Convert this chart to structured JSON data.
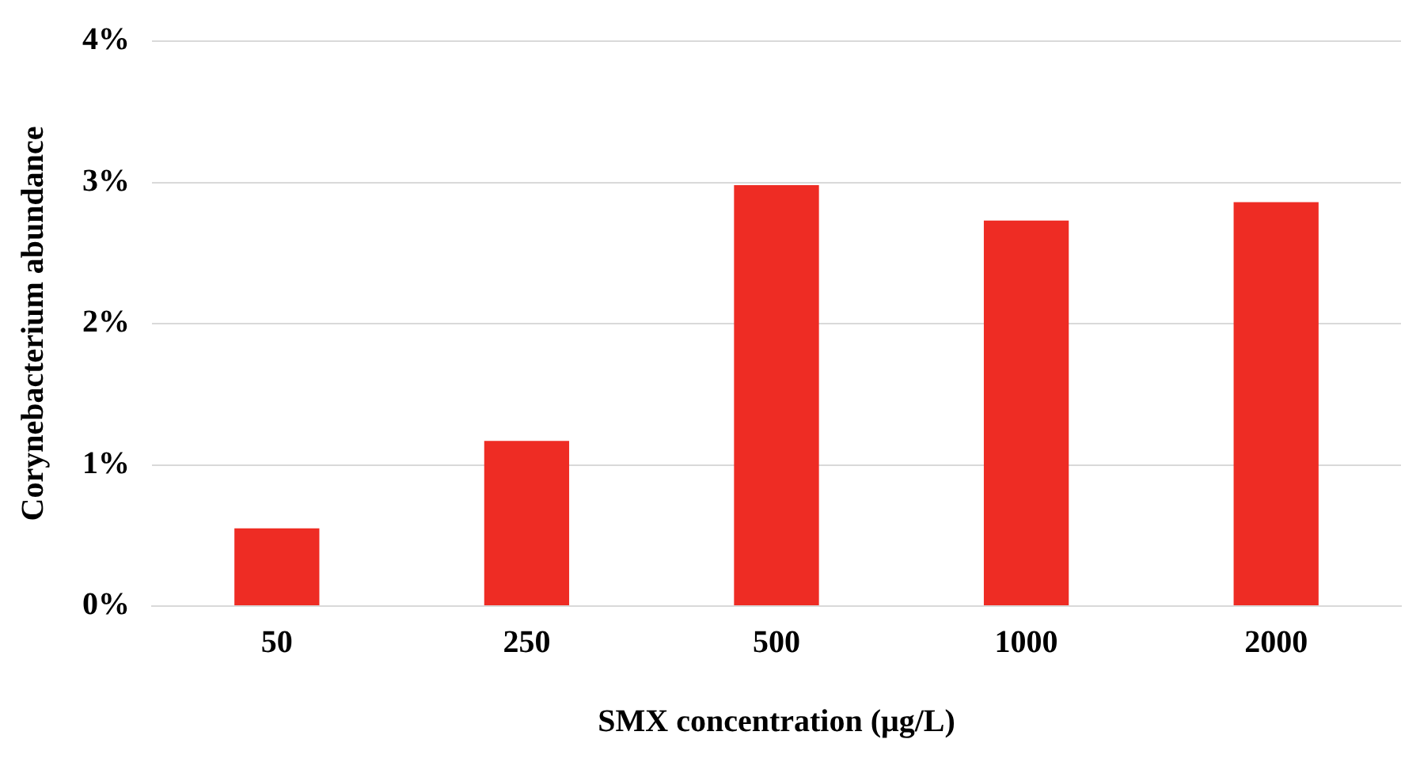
{
  "chart_data": {
    "type": "bar",
    "xlabel": "SMX concentration (μg/L)",
    "ylabel": "Corynebacterium abundance",
    "categories": [
      "50",
      "250",
      "500",
      "1000",
      "2000"
    ],
    "values": [
      0.55,
      1.17,
      2.98,
      2.73,
      2.86
    ],
    "color": "#ee2c24",
    "ylim": [
      0,
      4
    ],
    "yticks": [
      {
        "value": 0,
        "label": "0%"
      },
      {
        "value": 1,
        "label": "1%"
      },
      {
        "value": 2,
        "label": "2%"
      },
      {
        "value": 3,
        "label": "3%"
      },
      {
        "value": 4,
        "label": "4%"
      }
    ],
    "grid": "y",
    "legend": false
  }
}
